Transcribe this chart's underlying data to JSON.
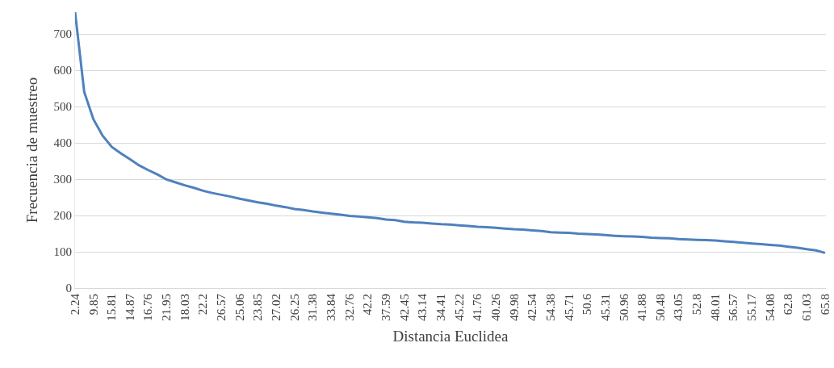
{
  "chart_data": {
    "type": "line",
    "xlabel": "Distancia Euclidea",
    "ylabel": "Frecuencia de muestreo",
    "categories": [
      "2.24",
      null,
      "9.85",
      null,
      "15.81",
      null,
      "14.87",
      null,
      "16.76",
      null,
      "21.95",
      null,
      "18.03",
      null,
      "22.2",
      null,
      "26.57",
      null,
      "25.06",
      null,
      "23.85",
      null,
      "27.02",
      null,
      "26.25",
      null,
      "31.38",
      null,
      "33.84",
      null,
      "32.76",
      null,
      "42.2",
      null,
      "37.59",
      null,
      "42.45",
      null,
      "43.14",
      null,
      "34.41",
      null,
      "45.22",
      null,
      "41.76",
      null,
      "40.26",
      null,
      "49.98",
      null,
      "42.54",
      null,
      "54.38",
      null,
      "45.71",
      null,
      "50.6",
      null,
      "45.31",
      null,
      "50.96",
      null,
      "41.88",
      null,
      "50.48",
      null,
      "43.05",
      null,
      "52.8",
      null,
      "48.01",
      null,
      "56.57",
      null,
      "55.17",
      null,
      "54.08",
      null,
      "62.8",
      null,
      "61.03",
      null,
      "65.8"
    ],
    "series": [
      {
        "color": "#4f81bd",
        "values": [
          760,
          540,
          465,
          420,
          389,
          371,
          355,
          338,
          325,
          313,
          299,
          291,
          283,
          276,
          268,
          262,
          257,
          252,
          246,
          241,
          236,
          232,
          227,
          223,
          218,
          215,
          211,
          208,
          205,
          202,
          199,
          197,
          195,
          193,
          189,
          187,
          183,
          181,
          180,
          178,
          176,
          175,
          173,
          171,
          169,
          168,
          166,
          164,
          162,
          161,
          159,
          157,
          154,
          153,
          152,
          150,
          149,
          148,
          146,
          144,
          143,
          142,
          141,
          139,
          138,
          137,
          135,
          134,
          133,
          132,
          131,
          129,
          127,
          125,
          123,
          121,
          119,
          117,
          114,
          111,
          107,
          104,
          97
        ]
      }
    ],
    "ylim": [
      0,
      760
    ],
    "yticks": [
      0,
      100,
      200,
      300,
      400,
      500,
      600,
      700
    ],
    "grid": "y",
    "marker": "none",
    "line_style": "solid"
  }
}
